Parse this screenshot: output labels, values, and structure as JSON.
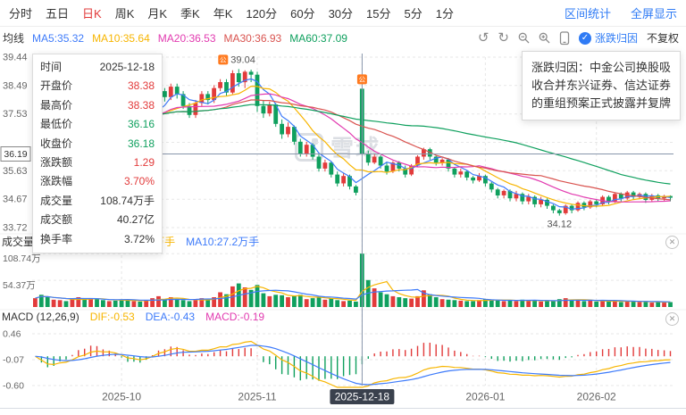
{
  "toolbar": {
    "tabs": [
      {
        "label": "分时"
      },
      {
        "label": "五日"
      },
      {
        "label": "日K",
        "active": true
      },
      {
        "label": "周K"
      },
      {
        "label": "月K"
      },
      {
        "label": "季K"
      },
      {
        "label": "年K"
      },
      {
        "label": "120分"
      },
      {
        "label": "60分"
      },
      {
        "label": "30分"
      },
      {
        "label": "15分"
      },
      {
        "label": "5分"
      },
      {
        "label": "1分"
      }
    ],
    "range_stat": "区间统计",
    "fullscreen": "全屏显示"
  },
  "legend": {
    "title": "均线",
    "ma5": "MA5:35.32",
    "ma10": "MA10:35.64",
    "ma20": "MA20:36.53",
    "ma30": "MA30:36.93",
    "ma60": "MA60:37.09",
    "attribution_toggle": "涨跌归因",
    "adjust_mode": "不复权"
  },
  "tooltip": {
    "rows": [
      {
        "label": "时间",
        "value": "2025-12-18",
        "trend": "neutral"
      },
      {
        "label": "开盘价",
        "value": "38.38",
        "trend": "up"
      },
      {
        "label": "最高价",
        "value": "38.38",
        "trend": "up"
      },
      {
        "label": "最低价",
        "value": "36.16",
        "trend": "down"
      },
      {
        "label": "收盘价",
        "value": "36.18",
        "trend": "down"
      },
      {
        "label": "涨跌额",
        "value": "1.29",
        "trend": "up"
      },
      {
        "label": "涨跌幅",
        "value": "3.70%",
        "trend": "up"
      },
      {
        "label": "成交量",
        "value": "108.74万手",
        "trend": "neutral"
      },
      {
        "label": "成交额",
        "value": "40.27亿",
        "trend": "neutral"
      },
      {
        "label": "换手率",
        "value": "3.72%",
        "trend": "neutral"
      }
    ]
  },
  "attribution": {
    "text": "涨跌归因：中金公司换股吸收合并东兴证券、信达证券的重组预案正式披露并复牌"
  },
  "volume_legend": {
    "volume": "成交量:108.74万手",
    "ma5": "MA5:32.04万手",
    "ma10": "MA10:27.2万手"
  },
  "macd_legend": {
    "title": "MACD (12,26,9)",
    "dif": "DIF:-0.53",
    "dea": "DEA:-0.43",
    "macd": "MACD:-0.19"
  },
  "watermark": {
    "text": "雪球"
  },
  "chart_data": {
    "type": "candlestick",
    "period": "日K",
    "y_max": 39.44,
    "y_min": 33.72,
    "y_axis_labels": [
      {
        "text": "39.44",
        "slot": 0
      },
      {
        "text": "38.49",
        "slot": 1
      },
      {
        "text": "37.53",
        "slot": 2
      },
      {
        "text": "35.63",
        "slot": 4
      },
      {
        "text": "34.67",
        "slot": 5
      },
      {
        "text": "33.72",
        "slot": 6
      }
    ],
    "volume_max": 108.74,
    "volume_mid": 54.37,
    "volume_axis_labels": [
      "108.74万",
      "54.37万"
    ],
    "macd_axis_values": [
      0.46,
      -0.07,
      -0.6
    ],
    "macd_axis_labels": [
      "0.46",
      "-0.07",
      "-0.60"
    ],
    "macd_max": 0.46,
    "macd_min": -0.6,
    "x_ticks": [
      {
        "index": 14,
        "label": "2025-10",
        "highlight": false
      },
      {
        "index": 36,
        "label": "2025-11",
        "highlight": false
      },
      {
        "index": 53,
        "label": "2025-12-18",
        "highlight": true
      },
      {
        "index": 73,
        "label": "2026-01",
        "highlight": false
      },
      {
        "index": 91,
        "label": "2026-02",
        "highlight": false
      }
    ],
    "crosshair": {
      "index": 53,
      "price": 36.19,
      "price_label": "36.19",
      "date_label": "2025-12-18"
    },
    "markers": [
      {
        "index": 33,
        "position": "high",
        "icon": "公",
        "label": "39.04"
      },
      {
        "index": 53,
        "position": "high",
        "icon": "公",
        "label": ""
      },
      {
        "index": 85,
        "position": "low",
        "icon": "",
        "label": "34.12"
      }
    ],
    "candles": [
      [
        37.2,
        37.75,
        37.05,
        37.6
      ],
      [
        37.6,
        37.7,
        36.45,
        36.6
      ],
      [
        36.6,
        36.75,
        36.2,
        36.4
      ],
      [
        36.45,
        37.1,
        36.3,
        37.0
      ],
      [
        37.0,
        37.6,
        36.9,
        37.5
      ],
      [
        37.5,
        37.65,
        37.1,
        37.3
      ],
      [
        37.3,
        37.9,
        37.2,
        37.8
      ],
      [
        37.8,
        38.2,
        37.65,
        38.1
      ],
      [
        38.1,
        38.25,
        37.75,
        37.9
      ],
      [
        37.9,
        38.4,
        37.8,
        38.3
      ],
      [
        38.3,
        38.45,
        37.9,
        38.0
      ],
      [
        38.0,
        38.1,
        37.5,
        37.6
      ],
      [
        37.6,
        37.95,
        37.45,
        37.8
      ],
      [
        37.8,
        37.9,
        37.35,
        37.5
      ],
      [
        37.5,
        37.6,
        37.05,
        37.2
      ],
      [
        37.2,
        37.35,
        36.8,
        36.9
      ],
      [
        36.9,
        37.45,
        36.8,
        37.3
      ],
      [
        37.3,
        37.4,
        36.95,
        37.1
      ],
      [
        37.1,
        37.7,
        37.0,
        37.6
      ],
      [
        37.6,
        38.1,
        37.5,
        38.0
      ],
      [
        38.0,
        38.4,
        37.9,
        38.3
      ],
      [
        38.3,
        38.4,
        37.95,
        38.1
      ],
      [
        38.1,
        38.55,
        38.0,
        38.45
      ],
      [
        38.45,
        38.55,
        38.05,
        38.2
      ],
      [
        38.2,
        38.3,
        37.7,
        37.8
      ],
      [
        37.8,
        37.9,
        37.4,
        37.5
      ],
      [
        37.5,
        38.0,
        37.4,
        37.9
      ],
      [
        37.9,
        38.3,
        37.8,
        38.2
      ],
      [
        38.2,
        38.3,
        37.85,
        38.0
      ],
      [
        38.0,
        38.5,
        37.9,
        38.4
      ],
      [
        38.4,
        38.7,
        38.3,
        38.6
      ],
      [
        38.6,
        38.7,
        38.15,
        38.25
      ],
      [
        38.25,
        39.0,
        38.2,
        38.9
      ],
      [
        38.9,
        39.04,
        38.45,
        38.6
      ],
      [
        38.6,
        39.0,
        38.4,
        38.95
      ],
      [
        38.95,
        39.02,
        38.6,
        38.85
      ],
      [
        38.85,
        38.95,
        37.6,
        37.8
      ],
      [
        37.8,
        38.0,
        37.4,
        37.55
      ],
      [
        37.55,
        37.95,
        37.45,
        37.85
      ],
      [
        37.85,
        37.9,
        37.1,
        37.2
      ],
      [
        37.2,
        37.35,
        36.7,
        36.85
      ],
      [
        36.85,
        37.25,
        36.75,
        37.1
      ],
      [
        37.1,
        37.15,
        36.5,
        36.6
      ],
      [
        36.6,
        36.7,
        36.1,
        36.2
      ],
      [
        36.2,
        36.6,
        36.1,
        36.5
      ],
      [
        36.5,
        36.55,
        36.0,
        36.1
      ],
      [
        36.1,
        36.2,
        35.6,
        35.7
      ],
      [
        35.7,
        36.0,
        35.6,
        35.9
      ],
      [
        35.9,
        35.95,
        35.4,
        35.5
      ],
      [
        35.5,
        35.6,
        35.1,
        35.2
      ],
      [
        35.2,
        35.55,
        35.1,
        35.45
      ],
      [
        35.45,
        35.5,
        35.0,
        35.1
      ],
      [
        35.1,
        35.15,
        34.8,
        34.89
      ],
      [
        38.38,
        38.38,
        36.16,
        36.18
      ],
      [
        36.18,
        36.3,
        35.8,
        35.9
      ],
      [
        35.9,
        36.2,
        35.85,
        36.1
      ],
      [
        36.1,
        36.15,
        35.7,
        35.8
      ],
      [
        35.8,
        35.9,
        35.5,
        35.6
      ],
      [
        35.6,
        35.95,
        35.55,
        35.9
      ],
      [
        35.9,
        35.95,
        35.6,
        35.7
      ],
      [
        35.7,
        35.8,
        35.4,
        35.5
      ],
      [
        35.5,
        35.85,
        35.45,
        35.8
      ],
      [
        35.8,
        36.15,
        35.75,
        36.1
      ],
      [
        36.1,
        36.4,
        36.0,
        36.35
      ],
      [
        36.35,
        36.4,
        36.0,
        36.1
      ],
      [
        36.1,
        36.15,
        35.8,
        35.9
      ],
      [
        35.9,
        36.05,
        35.8,
        36.0
      ],
      [
        36.0,
        36.05,
        35.6,
        35.7
      ],
      [
        35.7,
        35.75,
        35.4,
        35.5
      ],
      [
        35.5,
        35.7,
        35.4,
        35.6
      ],
      [
        35.6,
        35.65,
        35.3,
        35.4
      ],
      [
        35.4,
        35.45,
        35.2,
        35.3
      ],
      [
        35.3,
        35.55,
        35.25,
        35.45
      ],
      [
        35.45,
        35.5,
        35.1,
        35.2
      ],
      [
        35.2,
        35.25,
        34.9,
        35.0
      ],
      [
        35.0,
        35.05,
        34.7,
        34.8
      ],
      [
        34.8,
        35.0,
        34.7,
        34.95
      ],
      [
        34.95,
        35.0,
        34.6,
        34.7
      ],
      [
        34.7,
        34.95,
        34.6,
        34.85
      ],
      [
        34.85,
        34.9,
        34.5,
        34.6
      ],
      [
        34.6,
        34.85,
        34.5,
        34.75
      ],
      [
        34.75,
        34.8,
        34.4,
        34.5
      ],
      [
        34.5,
        34.75,
        34.4,
        34.65
      ],
      [
        34.65,
        34.7,
        34.35,
        34.45
      ],
      [
        34.45,
        34.5,
        34.2,
        34.3
      ],
      [
        34.3,
        34.35,
        34.12,
        34.2
      ],
      [
        34.2,
        34.5,
        34.15,
        34.45
      ],
      [
        34.45,
        34.5,
        34.2,
        34.3
      ],
      [
        34.3,
        34.6,
        34.25,
        34.55
      ],
      [
        34.55,
        34.6,
        34.3,
        34.4
      ],
      [
        34.4,
        34.65,
        34.35,
        34.6
      ],
      [
        34.6,
        34.65,
        34.4,
        34.5
      ],
      [
        34.5,
        34.8,
        34.45,
        34.75
      ],
      [
        34.75,
        34.8,
        34.5,
        34.6
      ],
      [
        34.6,
        34.9,
        34.55,
        34.85
      ],
      [
        34.85,
        34.9,
        34.6,
        34.7
      ],
      [
        34.7,
        34.95,
        34.65,
        34.9
      ],
      [
        34.9,
        34.95,
        34.65,
        34.75
      ],
      [
        34.75,
        34.9,
        34.7,
        34.85
      ],
      [
        34.85,
        34.9,
        34.55,
        34.65
      ],
      [
        34.65,
        34.85,
        34.6,
        34.8
      ],
      [
        34.8,
        34.85,
        34.6,
        34.7
      ],
      [
        34.7,
        34.82,
        34.62,
        34.78
      ],
      [
        34.78,
        34.8,
        34.6,
        34.72
      ]
    ],
    "volumes": [
      18,
      25,
      20,
      15,
      14,
      12,
      16,
      20,
      15,
      18,
      16,
      14,
      12,
      13,
      15,
      14,
      12,
      11,
      13,
      18,
      22,
      16,
      20,
      15,
      14,
      12,
      14,
      18,
      15,
      20,
      30,
      26,
      42,
      48,
      40,
      35,
      45,
      28,
      22,
      25,
      24,
      20,
      22,
      25,
      16,
      18,
      20,
      15,
      18,
      14,
      12,
      13,
      11,
      108.74,
      55,
      38,
      30,
      26,
      22,
      20,
      18,
      17,
      22,
      34,
      26,
      20,
      16,
      15,
      14,
      13,
      12,
      12,
      14,
      16,
      15,
      14,
      12,
      14,
      12,
      15,
      12,
      14,
      11,
      13,
      12,
      16,
      18,
      14,
      15,
      12,
      13,
      11,
      12,
      11,
      13,
      10,
      12,
      11,
      10,
      12,
      9,
      10,
      9,
      10
    ],
    "colors": {
      "up": "#e23b3b",
      "down": "#0fa05e",
      "ma5": "#3e7bfa",
      "ma10": "#f7b500",
      "ma20": "#e23bb0",
      "ma30": "#d9534f",
      "ma60": "#0fa05e",
      "vol_ma5": "#f7b500",
      "vol_ma10": "#3e7bfa",
      "dif": "#f7b500",
      "dea": "#3e7bfa",
      "macd": "#e23bb0",
      "grid": "#e7e7e7",
      "axis_text": "#666666",
      "crosshair": "#8896ab",
      "marker": "#ff7a1f",
      "x_highlight_bg": "#3a414d",
      "accent_blue": "#2f7bf5"
    }
  }
}
